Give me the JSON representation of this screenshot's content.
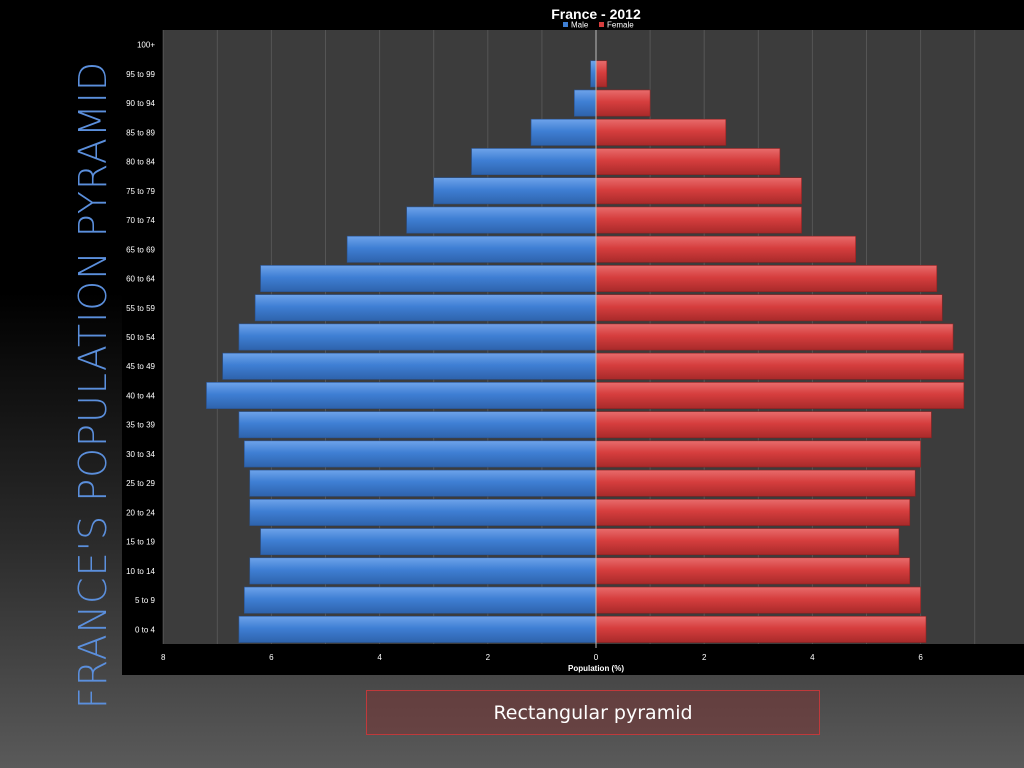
{
  "slide": {
    "title": "FRANCE'S POPULATION PYRAMID",
    "caption": "Rectangular pyramid"
  },
  "colors": {
    "male": "#3f7fd4",
    "female": "#d63e3e",
    "plot_bg": "#3c3c3c",
    "title_color": "#5b8fdc"
  },
  "chart_data": {
    "type": "bar",
    "orientation": "horizontal",
    "title": "France - 2012",
    "xlabel": "Population (%)",
    "ylabel": "",
    "legend_position": "top",
    "grid": true,
    "xlim": [
      -8,
      8
    ],
    "x_tick_labels": [
      "8",
      "6",
      "4",
      "2",
      "0",
      "2",
      "4",
      "6"
    ],
    "categories": [
      "0 to 4",
      "5 to 9",
      "10 to 14",
      "15 to 19",
      "20 to 24",
      "25 to 29",
      "30 to 34",
      "35 to 39",
      "40 to 44",
      "45 to 49",
      "50 to 54",
      "55 to 59",
      "60 to 64",
      "65 to 69",
      "70 to 74",
      "75 to 79",
      "80 to 84",
      "85 to 89",
      "90 to 94",
      "95 to 99",
      "100+"
    ],
    "series": [
      {
        "name": "Male",
        "values": [
          6.6,
          6.5,
          6.4,
          6.2,
          6.4,
          6.4,
          6.5,
          6.6,
          7.2,
          6.9,
          6.6,
          6.3,
          6.2,
          4.6,
          3.5,
          3.0,
          2.3,
          1.2,
          0.4,
          0.1,
          0.0
        ]
      },
      {
        "name": "Female",
        "values": [
          6.1,
          6.0,
          5.8,
          5.6,
          5.8,
          5.9,
          6.0,
          6.2,
          6.8,
          6.8,
          6.6,
          6.4,
          6.3,
          4.8,
          3.8,
          3.8,
          3.4,
          2.4,
          1.0,
          0.2,
          0.0
        ]
      }
    ]
  }
}
